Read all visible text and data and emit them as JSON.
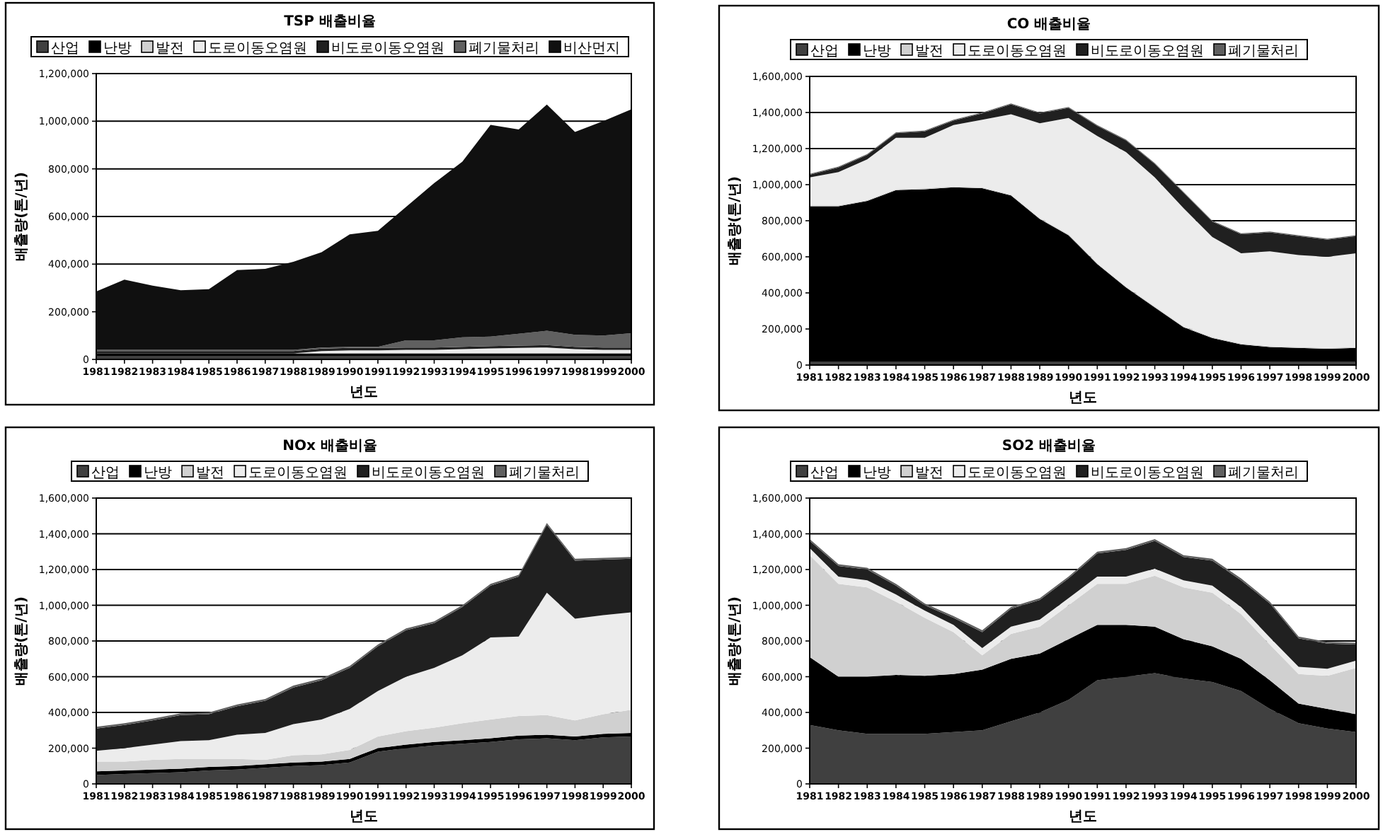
{
  "chart_data": [
    {
      "type": "area",
      "stacked": true,
      "title": "TSP 배출비율",
      "xlabel": "년도",
      "ylabel": "배출량(톤/년)",
      "legend": "top",
      "grid": "y",
      "categories": [
        "1981",
        "1982",
        "1983",
        "1984",
        "1985",
        "1986",
        "1987",
        "1988",
        "1989",
        "1990",
        "1991",
        "1992",
        "1993",
        "1994",
        "1995",
        "1996",
        "1997",
        "1998",
        "1999",
        "2000"
      ],
      "ylim": [
        0,
        1200000
      ],
      "yticks": [
        {
          "value": 0,
          "label": "0"
        },
        {
          "value": 200000,
          "label": "200,000"
        },
        {
          "value": 400000,
          "label": "400,000"
        },
        {
          "value": 600000,
          "label": "600,000"
        },
        {
          "value": 800000,
          "label": "800,000"
        },
        {
          "value": 1000000,
          "label": "1,000,000"
        },
        {
          "value": 1200000,
          "label": "1,200,000"
        }
      ],
      "series": [
        {
          "name": "산업",
          "color": "#404040",
          "values": [
            15000,
            15000,
            15000,
            15000,
            15000,
            15000,
            15000,
            15000,
            15000,
            15000,
            15000,
            15000,
            15000,
            15000,
            15000,
            15000,
            15000,
            15000,
            15000,
            15000
          ]
        },
        {
          "name": "난방",
          "color": "#000000",
          "values": [
            10000,
            10000,
            10000,
            10000,
            10000,
            10000,
            10000,
            10000,
            10000,
            10000,
            10000,
            10000,
            10000,
            10000,
            10000,
            10000,
            10000,
            10000,
            10000,
            10000
          ]
        },
        {
          "name": "발전",
          "color": "#d0d0d0",
          "values": [
            0,
            0,
            0,
            0,
            0,
            0,
            0,
            0,
            3000,
            3000,
            3000,
            3000,
            3000,
            3000,
            3000,
            3000,
            3000,
            3000,
            3000,
            3000
          ]
        },
        {
          "name": "도로이동오염원",
          "color": "#ececec",
          "values": [
            0,
            0,
            0,
            0,
            0,
            0,
            0,
            0,
            7000,
            10000,
            10000,
            12000,
            12000,
            15000,
            18000,
            20000,
            22000,
            15000,
            12000,
            12000
          ]
        },
        {
          "name": "비도로이동오염원",
          "color": "#202020",
          "values": [
            10000,
            10000,
            10000,
            10000,
            10000,
            10000,
            10000,
            10000,
            10000,
            10000,
            10000,
            10000,
            10000,
            10000,
            10000,
            10000,
            10000,
            10000,
            10000,
            10000
          ]
        },
        {
          "name": "폐기물처리",
          "color": "#606060",
          "values": [
            5000,
            5000,
            5000,
            5000,
            5000,
            5000,
            5000,
            5000,
            5000,
            5000,
            5000,
            30000,
            30000,
            40000,
            40000,
            50000,
            60000,
            50000,
            50000,
            60000
          ]
        },
        {
          "name": "비산먼지",
          "color": "#101010",
          "values": [
            245000,
            295000,
            270000,
            250000,
            255000,
            335000,
            340000,
            370000,
            400000,
            472000,
            487000,
            560000,
            660000,
            737000,
            889000,
            857000,
            950000,
            852000,
            900000,
            940000
          ]
        }
      ]
    },
    {
      "type": "area",
      "stacked": true,
      "title": "CO 배출비율",
      "xlabel": "년도",
      "ylabel": "배출량(톤/년)",
      "legend": "top",
      "grid": "y",
      "categories": [
        "1981",
        "1982",
        "1983",
        "1984",
        "1985",
        "1986",
        "1987",
        "1988",
        "1989",
        "1990",
        "1991",
        "1992",
        "1993",
        "1994",
        "1995",
        "1996",
        "1997",
        "1998",
        "1999",
        "2000"
      ],
      "ylim": [
        0,
        1600000
      ],
      "yticks": [
        {
          "value": 0,
          "label": "0"
        },
        {
          "value": 200000,
          "label": "200,000"
        },
        {
          "value": 400000,
          "label": "400,000"
        },
        {
          "value": 600000,
          "label": "600,000"
        },
        {
          "value": 800000,
          "label": "800,000"
        },
        {
          "value": 1000000,
          "label": "1,000,000"
        },
        {
          "value": 1200000,
          "label": "1,200,000"
        },
        {
          "value": 1400000,
          "label": "1,400,000"
        },
        {
          "value": 1600000,
          "label": "1,600,000"
        }
      ],
      "series": [
        {
          "name": "산업",
          "color": "#404040",
          "values": [
            20000,
            20000,
            20000,
            20000,
            20000,
            20000,
            20000,
            20000,
            20000,
            20000,
            20000,
            20000,
            20000,
            20000,
            20000,
            20000,
            20000,
            20000,
            20000,
            20000
          ]
        },
        {
          "name": "난방",
          "color": "#000000",
          "values": [
            860000,
            860000,
            890000,
            950000,
            955000,
            965000,
            960000,
            920000,
            790000,
            700000,
            540000,
            410000,
            300000,
            190000,
            130000,
            95000,
            80000,
            75000,
            70000,
            75000
          ]
        },
        {
          "name": "발전",
          "color": "#d0d0d0",
          "values": [
            5000,
            5000,
            5000,
            5000,
            5000,
            5000,
            5000,
            5000,
            5000,
            5000,
            5000,
            5000,
            5000,
            5000,
            5000,
            5000,
            5000,
            5000,
            5000,
            5000
          ]
        },
        {
          "name": "도로이동오염원",
          "color": "#ececec",
          "values": [
            155000,
            185000,
            225000,
            285000,
            280000,
            340000,
            375000,
            445000,
            525000,
            645000,
            705000,
            745000,
            715000,
            655000,
            555000,
            500000,
            525000,
            510000,
            505000,
            520000
          ]
        },
        {
          "name": "비도로이동오염원",
          "color": "#202020",
          "values": [
            15000,
            25000,
            25000,
            25000,
            35000,
            25000,
            35000,
            55000,
            55000,
            55000,
            55000,
            65000,
            75000,
            85000,
            85000,
            105000,
            105000,
            105000,
            95000,
            95000
          ]
        },
        {
          "name": "폐기물처리",
          "color": "#606060",
          "values": [
            5000,
            5000,
            5000,
            5000,
            5000,
            5000,
            5000,
            5000,
            5000,
            5000,
            5000,
            5000,
            5000,
            5000,
            5000,
            5000,
            5000,
            5000,
            5000,
            5000
          ]
        }
      ]
    },
    {
      "type": "area",
      "stacked": true,
      "title": "NOx 배출비율",
      "xlabel": "년도",
      "ylabel": "배출량(톤/년)",
      "legend": "top",
      "grid": "y",
      "categories": [
        "1981",
        "1982",
        "1983",
        "1984",
        "1985",
        "1986",
        "1987",
        "1988",
        "1989",
        "1990",
        "1991",
        "1992",
        "1993",
        "1994",
        "1995",
        "1996",
        "1997",
        "1998",
        "1999",
        "2000"
      ],
      "ylim": [
        0,
        1600000
      ],
      "yticks": [
        {
          "value": 0,
          "label": "0"
        },
        {
          "value": 200000,
          "label": "200,000"
        },
        {
          "value": 400000,
          "label": "400,000"
        },
        {
          "value": 600000,
          "label": "600,000"
        },
        {
          "value": 800000,
          "label": "800,000"
        },
        {
          "value": 1000000,
          "label": "1,000,000"
        },
        {
          "value": 1200000,
          "label": "1,200,000"
        },
        {
          "value": 1400000,
          "label": "1,400,000"
        },
        {
          "value": 1600000,
          "label": "1,600,000"
        }
      ],
      "series": [
        {
          "name": "산업",
          "color": "#404040",
          "values": [
            50000,
            55000,
            60000,
            65000,
            75000,
            80000,
            90000,
            100000,
            105000,
            120000,
            180000,
            200000,
            215000,
            225000,
            235000,
            250000,
            255000,
            245000,
            260000,
            265000
          ]
        },
        {
          "name": "난방",
          "color": "#000000",
          "values": [
            20000,
            20000,
            20000,
            20000,
            20000,
            20000,
            20000,
            20000,
            20000,
            20000,
            20000,
            20000,
            20000,
            20000,
            20000,
            20000,
            20000,
            20000,
            20000,
            20000
          ]
        },
        {
          "name": "발전",
          "color": "#d0d0d0",
          "values": [
            55000,
            50000,
            55000,
            55000,
            45000,
            40000,
            25000,
            40000,
            40000,
            50000,
            65000,
            75000,
            80000,
            95000,
            105000,
            110000,
            110000,
            90000,
            110000,
            130000
          ]
        },
        {
          "name": "도로이동오염원",
          "color": "#ececec",
          "values": [
            60000,
            75000,
            85000,
            100000,
            105000,
            135000,
            150000,
            175000,
            195000,
            230000,
            255000,
            305000,
            335000,
            380000,
            460000,
            445000,
            685000,
            570000,
            555000,
            545000
          ]
        },
        {
          "name": "비도로이동오염원",
          "color": "#202020",
          "values": [
            125000,
            130000,
            135000,
            145000,
            145000,
            160000,
            180000,
            205000,
            220000,
            230000,
            250000,
            260000,
            250000,
            270000,
            290000,
            335000,
            380000,
            325000,
            310000,
            300000
          ]
        },
        {
          "name": "폐기물처리",
          "color": "#606060",
          "values": [
            10000,
            10000,
            10000,
            10000,
            10000,
            10000,
            10000,
            10000,
            10000,
            10000,
            10000,
            10000,
            10000,
            10000,
            10000,
            10000,
            10000,
            10000,
            10000,
            10000
          ]
        }
      ]
    },
    {
      "type": "area",
      "stacked": true,
      "title": "SO2 배출비율",
      "xlabel": "년도",
      "ylabel": "배출량(톤/년)",
      "legend": "top",
      "grid": "y",
      "categories": [
        "1981",
        "1982",
        "1983",
        "1984",
        "1985",
        "1986",
        "1987",
        "1988",
        "1989",
        "1990",
        "1991",
        "1992",
        "1993",
        "1994",
        "1995",
        "1996",
        "1997",
        "1998",
        "1999",
        "2000"
      ],
      "ylim": [
        0,
        1600000
      ],
      "yticks": [
        {
          "value": 0,
          "label": "0"
        },
        {
          "value": 200000,
          "label": "200,000"
        },
        {
          "value": 400000,
          "label": "400,000"
        },
        {
          "value": 600000,
          "label": "600,000"
        },
        {
          "value": 800000,
          "label": "800,000"
        },
        {
          "value": 1000000,
          "label": "1,000,000"
        },
        {
          "value": 1200000,
          "label": "1,200,000"
        },
        {
          "value": 1400000,
          "label": "1,400,000"
        },
        {
          "value": 1600000,
          "label": "1,600,000"
        }
      ],
      "series": [
        {
          "name": "산업",
          "color": "#404040",
          "values": [
            330000,
            300000,
            280000,
            280000,
            280000,
            290000,
            300000,
            350000,
            400000,
            470000,
            580000,
            600000,
            620000,
            590000,
            570000,
            520000,
            420000,
            340000,
            310000,
            290000
          ]
        },
        {
          "name": "난방",
          "color": "#000000",
          "values": [
            380000,
            300000,
            320000,
            330000,
            325000,
            325000,
            340000,
            350000,
            330000,
            340000,
            310000,
            290000,
            260000,
            220000,
            200000,
            180000,
            160000,
            110000,
            110000,
            100000
          ]
        },
        {
          "name": "발전",
          "color": "#d0d0d0",
          "values": [
            570000,
            520000,
            500000,
            410000,
            325000,
            235000,
            80000,
            140000,
            150000,
            190000,
            230000,
            230000,
            285000,
            290000,
            300000,
            250000,
            200000,
            165000,
            185000,
            260000
          ]
        },
        {
          "name": "도로이동오염원",
          "color": "#ececec",
          "values": [
            40000,
            40000,
            40000,
            40000,
            40000,
            40000,
            40000,
            40000,
            40000,
            40000,
            40000,
            40000,
            40000,
            40000,
            40000,
            40000,
            40000,
            40000,
            40000,
            40000
          ]
        },
        {
          "name": "비도로이동오염원",
          "color": "#202020",
          "values": [
            40000,
            60000,
            60000,
            50000,
            30000,
            40000,
            90000,
            100000,
            110000,
            110000,
            130000,
            150000,
            155000,
            130000,
            140000,
            150000,
            190000,
            160000,
            140000,
            90000
          ]
        },
        {
          "name": "폐기물처리",
          "color": "#606060",
          "values": [
            10000,
            10000,
            10000,
            10000,
            10000,
            10000,
            10000,
            10000,
            10000,
            10000,
            10000,
            10000,
            10000,
            10000,
            10000,
            10000,
            10000,
            10000,
            10000,
            10000
          ]
        }
      ]
    }
  ]
}
